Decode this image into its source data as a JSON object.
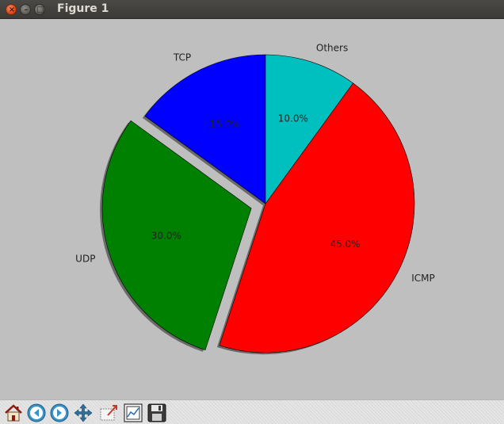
{
  "window": {
    "title": "Figure 1",
    "controls": [
      "close",
      "minimize",
      "maximize"
    ]
  },
  "chart_data": {
    "type": "pie",
    "labels": [
      "TCP",
      "UDP",
      "ICMP",
      "Others"
    ],
    "values": [
      15,
      30,
      45,
      10
    ],
    "pct_labels": [
      "15.0%",
      "30.0%",
      "45.0%",
      "10.0%"
    ],
    "colors": [
      "#0000ff",
      "#008000",
      "#ff0000",
      "#00bfbf"
    ],
    "explode": [
      0,
      0.1,
      0,
      0
    ],
    "start_angle_deg": 90,
    "shadow": true,
    "title": "",
    "legend": "none"
  },
  "toolbar": {
    "buttons": [
      {
        "name": "home-icon"
      },
      {
        "name": "back-icon"
      },
      {
        "name": "forward-icon"
      },
      {
        "name": "pan-icon"
      },
      {
        "name": "zoom-icon"
      },
      {
        "name": "configure-subplots-icon"
      },
      {
        "name": "save-icon"
      }
    ]
  }
}
